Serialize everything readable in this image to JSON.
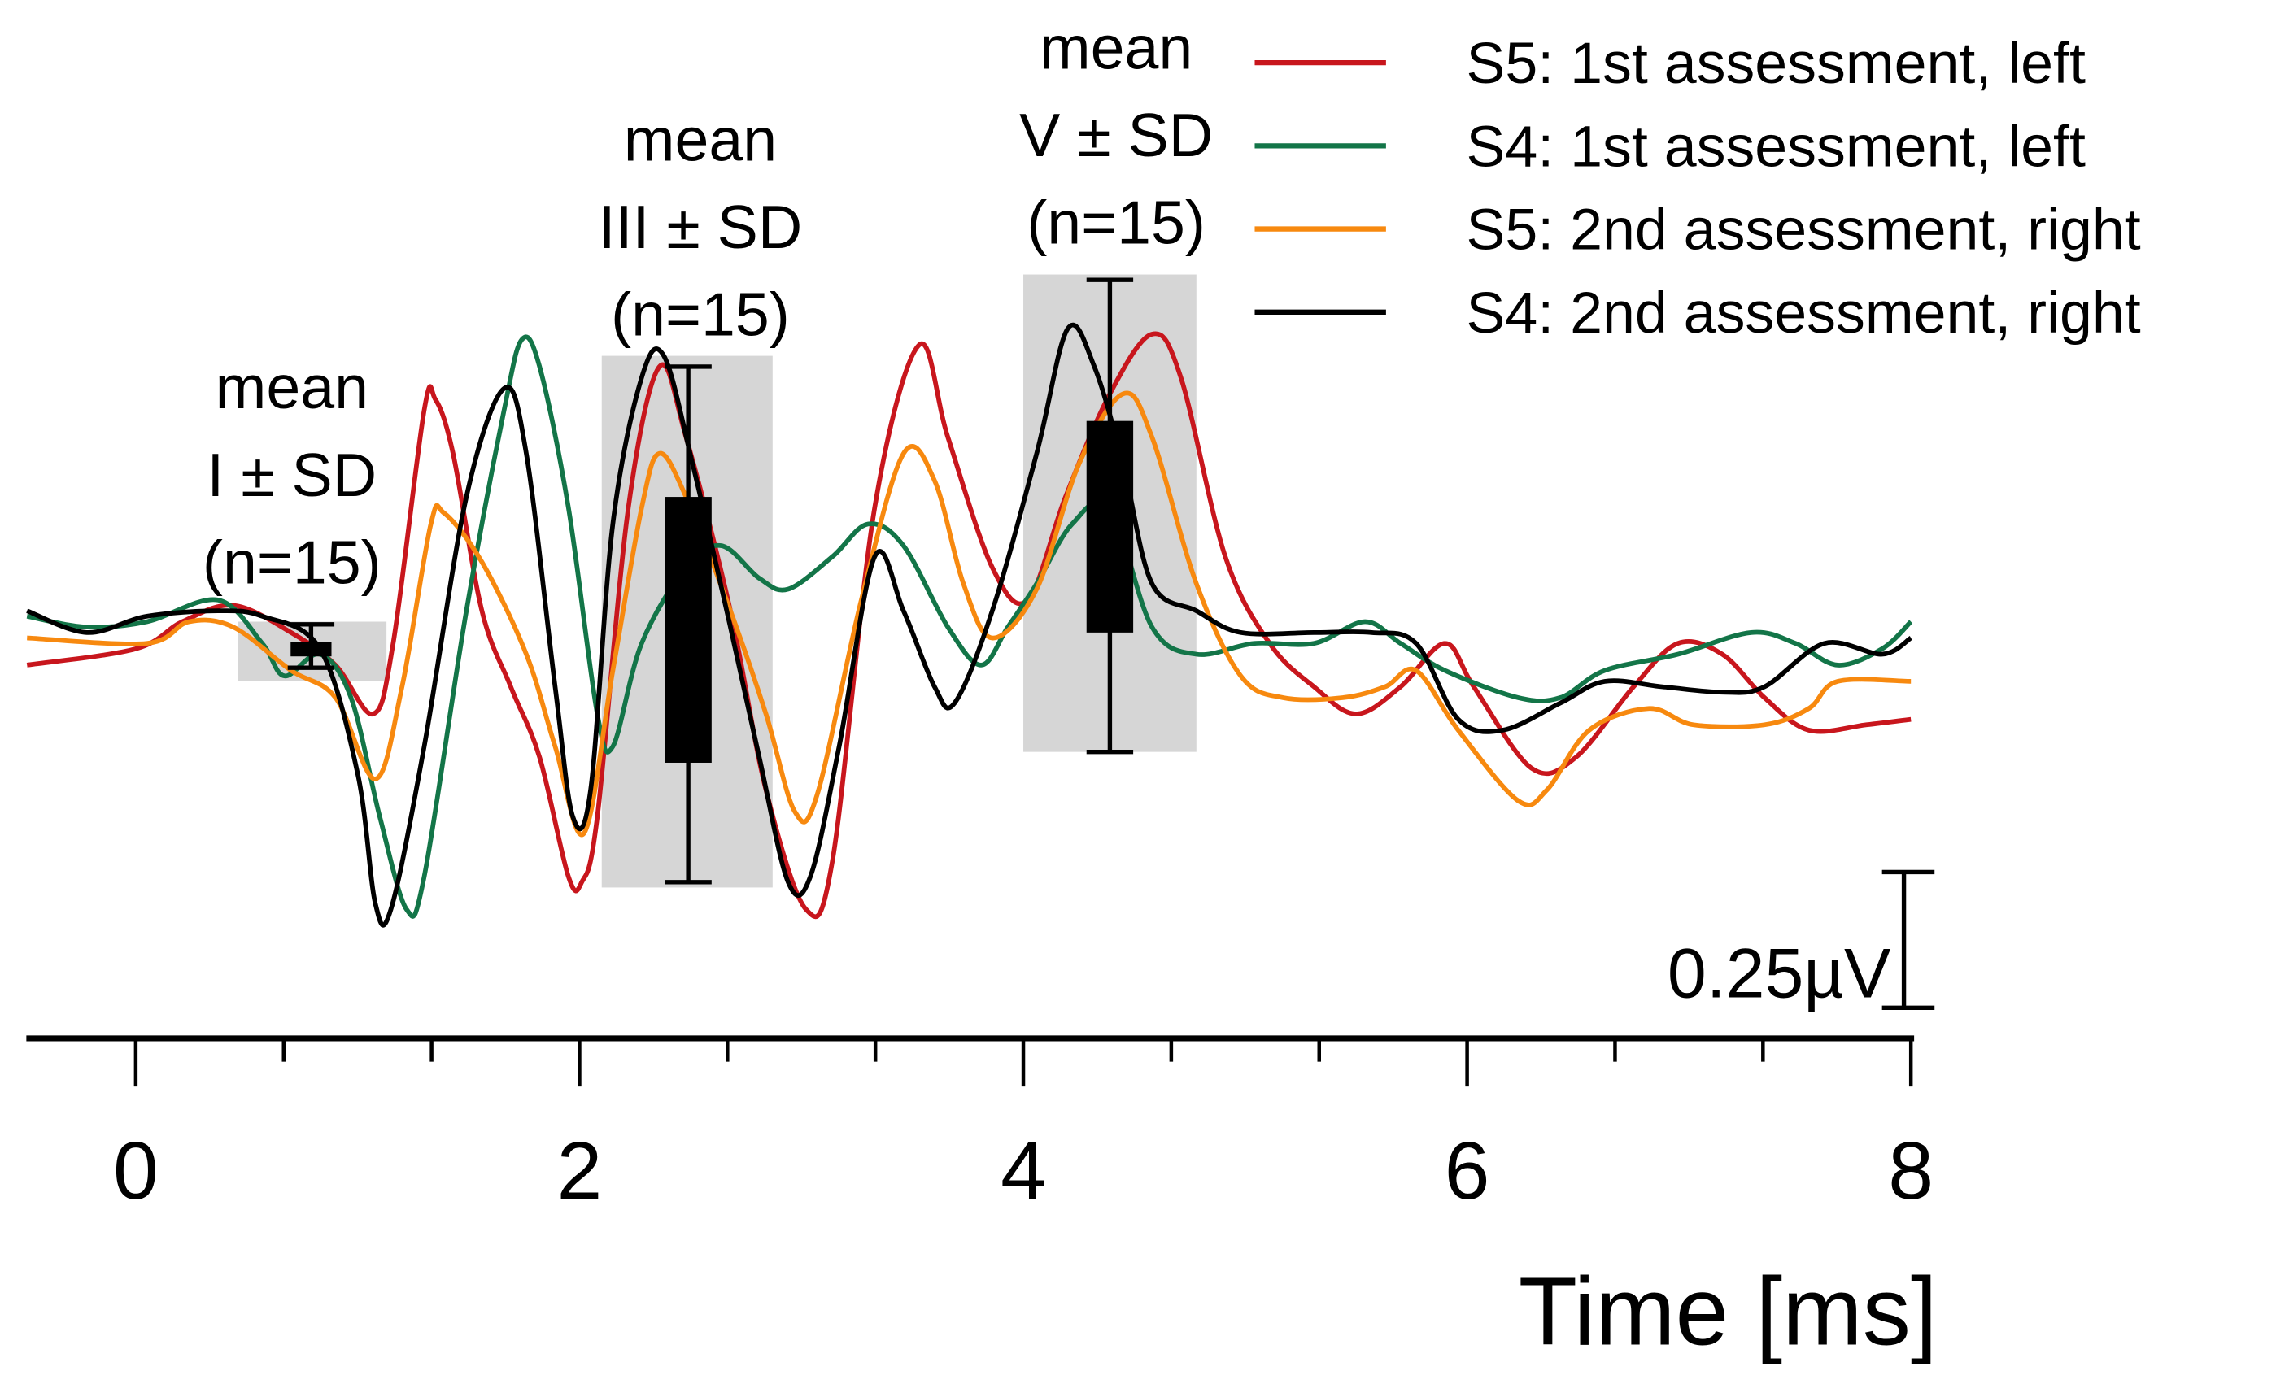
{
  "chart_data": {
    "type": "line",
    "title": "",
    "xlabel": "Time [ms]",
    "ylabel": "",
    "xlim": [
      -0.49,
      8
    ],
    "x_ticks": [
      "0",
      "2",
      "4",
      "6",
      "8"
    ],
    "x_tick_values": [
      0,
      2,
      4,
      6,
      8
    ],
    "minor_tick_step": 0.6667,
    "scale_bar": {
      "label": "0.25µV",
      "value_uV": 0.25
    },
    "legend_position": "top-right",
    "series": [
      {
        "name": "S5: 1st assessment, left",
        "color": "#c8161d",
        "points": [
          [
            -0.49,
            -0.07
          ],
          [
            0,
            -0.04
          ],
          [
            0.21,
            0.01
          ],
          [
            0.44,
            0.04
          ],
          [
            0.7,
            -0.01
          ],
          [
            0.9,
            -0.07
          ],
          [
            1.07,
            -0.16
          ],
          [
            1.16,
            -0.03
          ],
          [
            1.3,
            0.4
          ],
          [
            1.35,
            0.42
          ],
          [
            1.43,
            0.32
          ],
          [
            1.56,
            0.03
          ],
          [
            1.69,
            -0.11
          ],
          [
            1.82,
            -0.24
          ],
          [
            1.95,
            -0.46
          ],
          [
            2.01,
            -0.47
          ],
          [
            2.08,
            -0.35
          ],
          [
            2.22,
            0.22
          ],
          [
            2.36,
            0.48
          ],
          [
            2.48,
            0.35
          ],
          [
            2.68,
            0.03
          ],
          [
            2.84,
            -0.3
          ],
          [
            3.02,
            -0.52
          ],
          [
            3.14,
            -0.43
          ],
          [
            3.33,
            0.22
          ],
          [
            3.53,
            0.52
          ],
          [
            3.66,
            0.35
          ],
          [
            3.86,
            0.11
          ],
          [
            4.02,
            0.05
          ],
          [
            4.19,
            0.24
          ],
          [
            4.39,
            0.43
          ],
          [
            4.58,
            0.54
          ],
          [
            4.71,
            0.46
          ],
          [
            4.91,
            0.13
          ],
          [
            5.11,
            -0.03
          ],
          [
            5.31,
            -0.11
          ],
          [
            5.5,
            -0.16
          ],
          [
            5.7,
            -0.11
          ],
          [
            5.9,
            -0.03
          ],
          [
            6.03,
            -0.11
          ],
          [
            6.29,
            -0.26
          ],
          [
            6.49,
            -0.24
          ],
          [
            6.75,
            -0.11
          ],
          [
            6.95,
            -0.03
          ],
          [
            7.15,
            -0.05
          ],
          [
            7.34,
            -0.13
          ],
          [
            7.54,
            -0.19
          ],
          [
            7.8,
            -0.18
          ],
          [
            8,
            -0.17
          ]
        ]
      },
      {
        "name": "S4: 1st assessment, left",
        "color": "#137548",
        "points": [
          [
            -0.49,
            0.02
          ],
          [
            -0.22,
            0
          ],
          [
            0.05,
            0.01
          ],
          [
            0.37,
            0.05
          ],
          [
            0.57,
            -0.03
          ],
          [
            0.67,
            -0.09
          ],
          [
            0.83,
            -0.05
          ],
          [
            0.97,
            -0.13
          ],
          [
            1.1,
            -0.35
          ],
          [
            1.22,
            -0.52
          ],
          [
            1.3,
            -0.46
          ],
          [
            1.49,
            0.03
          ],
          [
            1.66,
            0.4
          ],
          [
            1.74,
            0.53
          ],
          [
            1.82,
            0.48
          ],
          [
            1.95,
            0.22
          ],
          [
            2.08,
            -0.16
          ],
          [
            2.15,
            -0.22
          ],
          [
            2.28,
            -0.03
          ],
          [
            2.48,
            0.11
          ],
          [
            2.64,
            0.15
          ],
          [
            2.81,
            0.09
          ],
          [
            2.94,
            0.07
          ],
          [
            3.14,
            0.13
          ],
          [
            3.3,
            0.19
          ],
          [
            3.46,
            0.15
          ],
          [
            3.66,
            0
          ],
          [
            3.81,
            -0.07
          ],
          [
            3.93,
            0
          ],
          [
            4.06,
            0.08
          ],
          [
            4.22,
            0.19
          ],
          [
            4.39,
            0.22
          ],
          [
            4.58,
            0
          ],
          [
            4.78,
            -0.05
          ],
          [
            5.04,
            -0.03
          ],
          [
            5.31,
            -0.03
          ],
          [
            5.54,
            0.01
          ],
          [
            5.7,
            -0.03
          ],
          [
            5.9,
            -0.08
          ],
          [
            6.23,
            -0.13
          ],
          [
            6.42,
            -0.13
          ],
          [
            6.62,
            -0.08
          ],
          [
            6.95,
            -0.05
          ],
          [
            7.28,
            -0.01
          ],
          [
            7.48,
            -0.03
          ],
          [
            7.67,
            -0.07
          ],
          [
            7.87,
            -0.04
          ],
          [
            8,
            0.01
          ]
        ]
      },
      {
        "name": "S5: 2nd assessment, right",
        "color": "#f7890f",
        "points": [
          [
            -0.49,
            -0.02
          ],
          [
            0.05,
            -0.03
          ],
          [
            0.24,
            0.01
          ],
          [
            0.44,
            0
          ],
          [
            0.7,
            -0.08
          ],
          [
            0.9,
            -0.13
          ],
          [
            1.08,
            -0.28
          ],
          [
            1.2,
            -0.11
          ],
          [
            1.33,
            0.19
          ],
          [
            1.39,
            0.21
          ],
          [
            1.56,
            0.12
          ],
          [
            1.76,
            -0.05
          ],
          [
            1.89,
            -0.22
          ],
          [
            2.02,
            -0.38
          ],
          [
            2.15,
            -0.08
          ],
          [
            2.28,
            0.22
          ],
          [
            2.36,
            0.32
          ],
          [
            2.48,
            0.24
          ],
          [
            2.68,
            0.03
          ],
          [
            2.84,
            -0.16
          ],
          [
            2.97,
            -0.34
          ],
          [
            3.07,
            -0.31
          ],
          [
            3.27,
            0.05
          ],
          [
            3.46,
            0.32
          ],
          [
            3.6,
            0.27
          ],
          [
            3.73,
            0.08
          ],
          [
            3.86,
            -0.02
          ],
          [
            4.06,
            0.07
          ],
          [
            4.25,
            0.3
          ],
          [
            4.45,
            0.43
          ],
          [
            4.58,
            0.35
          ],
          [
            4.78,
            0.08
          ],
          [
            4.98,
            -0.09
          ],
          [
            5.17,
            -0.13
          ],
          [
            5.44,
            -0.13
          ],
          [
            5.63,
            -0.11
          ],
          [
            5.77,
            -0.08
          ],
          [
            5.96,
            -0.19
          ],
          [
            6.23,
            -0.32
          ],
          [
            6.36,
            -0.3
          ],
          [
            6.55,
            -0.19
          ],
          [
            6.82,
            -0.15
          ],
          [
            7.02,
            -0.18
          ],
          [
            7.34,
            -0.18
          ],
          [
            7.54,
            -0.15
          ],
          [
            7.67,
            -0.1
          ],
          [
            8,
            -0.1
          ]
        ]
      },
      {
        "name": "S4: 2nd assessment, right",
        "color": "#000000",
        "points": [
          [
            -0.49,
            0.03
          ],
          [
            -0.22,
            -0.01
          ],
          [
            0.05,
            0.02
          ],
          [
            0.37,
            0.03
          ],
          [
            0.57,
            0.02
          ],
          [
            0.83,
            -0.04
          ],
          [
            1,
            -0.27
          ],
          [
            1.08,
            -0.51
          ],
          [
            1.15,
            -0.52
          ],
          [
            1.3,
            -0.22
          ],
          [
            1.49,
            0.24
          ],
          [
            1.66,
            0.44
          ],
          [
            1.76,
            0.32
          ],
          [
            1.89,
            -0.11
          ],
          [
            1.97,
            -0.35
          ],
          [
            2.05,
            -0.3
          ],
          [
            2.15,
            0.19
          ],
          [
            2.28,
            0.46
          ],
          [
            2.38,
            0.5
          ],
          [
            2.51,
            0.3
          ],
          [
            2.68,
            0
          ],
          [
            2.81,
            -0.24
          ],
          [
            2.94,
            -0.47
          ],
          [
            3.04,
            -0.46
          ],
          [
            3.17,
            -0.22
          ],
          [
            3.33,
            0.13
          ],
          [
            3.46,
            0.03
          ],
          [
            3.6,
            -0.11
          ],
          [
            3.69,
            -0.14
          ],
          [
            3.86,
            0.03
          ],
          [
            4.06,
            0.32
          ],
          [
            4.2,
            0.55
          ],
          [
            4.32,
            0.48
          ],
          [
            4.45,
            0.3
          ],
          [
            4.58,
            0.08
          ],
          [
            4.78,
            0.03
          ],
          [
            4.98,
            -0.01
          ],
          [
            5.31,
            -0.01
          ],
          [
            5.57,
            -0.01
          ],
          [
            5.77,
            -0.03
          ],
          [
            5.96,
            -0.17
          ],
          [
            6.16,
            -0.19
          ],
          [
            6.42,
            -0.14
          ],
          [
            6.62,
            -0.1
          ],
          [
            6.88,
            -0.11
          ],
          [
            7.15,
            -0.12
          ],
          [
            7.34,
            -0.11
          ],
          [
            7.61,
            -0.03
          ],
          [
            7.87,
            -0.05
          ],
          [
            8,
            -0.02
          ]
        ]
      }
    ],
    "boxes": [
      {
        "label": [
          "mean",
          "I ± SD",
          "(n=15)"
        ],
        "center": 0.79,
        "range_t": [
          0.46,
          1.13
        ],
        "range_v": [
          0.01,
          -0.1
        ],
        "whisker": [
          0.005,
          -0.075
        ],
        "box": [
          -0.027,
          -0.054
        ]
      },
      {
        "label": [
          "mean",
          "III ± SD",
          "(n=15)"
        ],
        "center": 2.49,
        "range_t": [
          2.1,
          2.87
        ],
        "range_v": [
          0.5,
          -0.48
        ],
        "whisker": [
          0.48,
          -0.47
        ],
        "box": [
          0.24,
          -0.25
        ]
      },
      {
        "label": [
          "mean",
          "V ± SD",
          "(n=15)"
        ],
        "center": 4.39,
        "range_t": [
          4.0,
          4.78
        ],
        "range_v": [
          0.65,
          -0.23
        ],
        "whisker": [
          0.64,
          -0.23
        ],
        "box": [
          0.38,
          -0.01
        ]
      }
    ]
  }
}
